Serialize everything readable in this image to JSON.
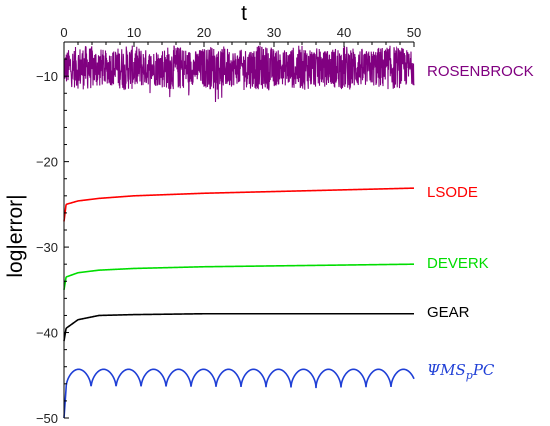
{
  "chart_data": {
    "type": "line",
    "xlabel": "t",
    "ylabel": "log|error|",
    "xlim": [
      0,
      50
    ],
    "ylim": [
      -50,
      -6
    ],
    "x_ticks": [
      0,
      10,
      20,
      30,
      40,
      50
    ],
    "y_ticks": [
      -10,
      -20,
      -30,
      -40,
      -50
    ],
    "x_axis_position": "top",
    "grid": false,
    "legend": "inline labels at right end of each series",
    "series": [
      {
        "name": "ROSENBROCK",
        "color": "#800080",
        "style": "noisy band",
        "center": -9.0,
        "amplitude": 2.6
      },
      {
        "name": "LSODE",
        "color": "#ff0000",
        "start": -27.0,
        "values": [
          [
            0.3,
            -25.0
          ],
          [
            2,
            -24.6
          ],
          [
            5,
            -24.3
          ],
          [
            10,
            -24.0
          ],
          [
            20,
            -23.7
          ],
          [
            30,
            -23.5
          ],
          [
            40,
            -23.3
          ],
          [
            50,
            -23.1
          ]
        ]
      },
      {
        "name": "DEVERK",
        "color": "#00dd00",
        "start": -35.0,
        "values": [
          [
            0.3,
            -33.5
          ],
          [
            2,
            -33.0
          ],
          [
            5,
            -32.7
          ],
          [
            10,
            -32.5
          ],
          [
            20,
            -32.3
          ],
          [
            30,
            -32.2
          ],
          [
            40,
            -32.1
          ],
          [
            50,
            -32.0
          ]
        ]
      },
      {
        "name": "GEAR",
        "color": "#000000",
        "start": -41.0,
        "values": [
          [
            0.3,
            -39.5
          ],
          [
            2,
            -38.5
          ],
          [
            5,
            -38.0
          ],
          [
            10,
            -37.9
          ],
          [
            20,
            -37.8
          ],
          [
            30,
            -37.8
          ],
          [
            40,
            -37.8
          ],
          [
            50,
            -37.8
          ]
        ]
      },
      {
        "name": "ΨMS",
        "name_sub": "p",
        "name_tail": "PC",
        "color": "#1f3fd6",
        "style": "oscillating",
        "start": -50.0,
        "base": -44.3,
        "amplitude": 2.2,
        "period": 3.57
      }
    ]
  }
}
